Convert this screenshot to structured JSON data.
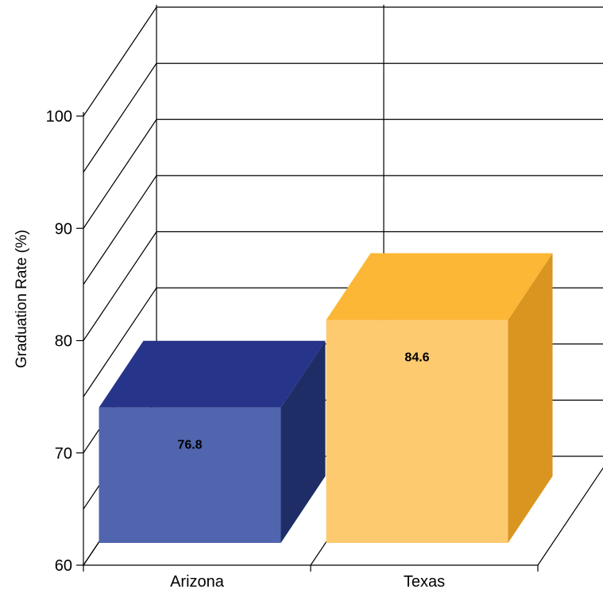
{
  "chart_data": {
    "type": "bar",
    "title": "",
    "xlabel": "",
    "ylabel": "Graduation Rate (%)",
    "ylim": [
      60,
      100
    ],
    "y_ticks": [
      "60",
      "70",
      "80",
      "90",
      "100"
    ],
    "categories": [
      "Arizona",
      "Texas"
    ],
    "values": [
      76.8,
      84.6
    ],
    "value_labels": [
      "76.8",
      "84.6"
    ],
    "bar_colors": [
      {
        "front": "#5165ae",
        "top": "#26358a",
        "side": "#1e2d66"
      },
      {
        "front": "#fdca70",
        "top": "#fbb735",
        "side": "#d9951f"
      }
    ],
    "grid": true,
    "legend": "none",
    "style": "3d"
  }
}
